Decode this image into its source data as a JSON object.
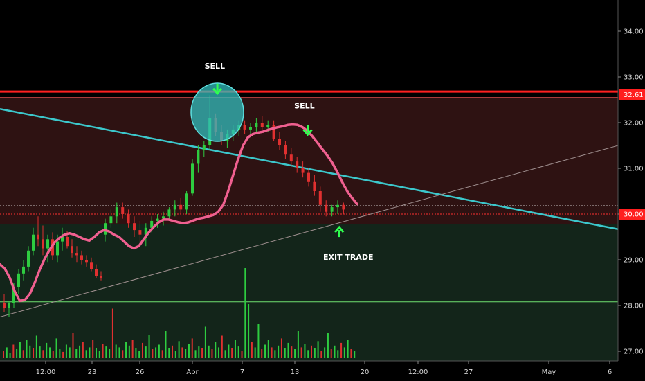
{
  "chart_data": {
    "type": "candlestick",
    "y_axis": {
      "ticks": [
        "27.00",
        "28.00",
        "29.00",
        "30.00",
        "31.00",
        "32.00",
        "33.00",
        "34.00"
      ],
      "ylim": [
        26.8,
        34.4
      ],
      "position": "right"
    },
    "x_axis": {
      "ticks": [
        "12:00",
        "23",
        "26",
        "Apr",
        "7",
        "13",
        "20",
        "12:00",
        "27",
        "May",
        "6"
      ]
    },
    "price_tags": [
      {
        "label": "32.61",
        "value": 32.61,
        "color": "#ff1f1f"
      },
      {
        "label": "30.00",
        "value": 30.0,
        "color": "#ff1f1f"
      }
    ],
    "levels": {
      "resistance": 32.61,
      "resistance_upper": 32.68,
      "resistance_lower": 32.55,
      "dotted_white": 30.18,
      "dotted_red": 30.0,
      "zone_mid": 29.78,
      "support": 28.08
    },
    "trendlines": [
      {
        "name": "cyan_down",
        "color": "#3cc8cc",
        "from": [
          0,
          32.3
        ],
        "to": [
          1,
          29.67
        ]
      },
      {
        "name": "gray_up",
        "color": "#a09090",
        "from": [
          0,
          27.75
        ],
        "to": [
          1,
          31.5
        ]
      }
    ],
    "annotations": [
      {
        "text": "SELL",
        "at": 0.333,
        "value": 33.18
      },
      {
        "text": "SELL",
        "at": 0.472,
        "value": 32.31
      },
      {
        "text": "EXIT TRADE",
        "at": 0.54,
        "value": 29.0
      }
    ],
    "arrows": [
      {
        "dir": "down",
        "at": 0.337,
        "value": 32.7
      },
      {
        "dir": "down",
        "at": 0.477,
        "value": 31.8
      },
      {
        "dir": "up",
        "at": 0.526,
        "value": 29.65
      }
    ],
    "moving_average": {
      "color": "#f06090",
      "values": [
        28.9,
        28.8,
        28.6,
        28.3,
        28.1,
        28.12,
        28.25,
        28.5,
        28.78,
        29.02,
        29.22,
        29.38,
        29.48,
        29.55,
        29.58,
        29.55,
        29.5,
        29.45,
        29.42,
        29.5,
        29.6,
        29.65,
        29.62,
        29.55,
        29.5,
        29.4,
        29.3,
        29.25,
        29.3,
        29.45,
        29.6,
        29.72,
        29.82,
        29.88,
        29.88,
        29.85,
        29.82,
        29.8,
        29.82,
        29.86,
        29.9,
        29.92,
        29.95,
        29.98,
        30.05,
        30.2,
        30.5,
        30.85,
        31.2,
        31.5,
        31.68,
        31.75,
        31.78,
        31.8,
        31.84,
        31.87,
        31.9,
        31.92,
        31.95,
        31.96,
        31.95,
        31.9,
        31.82,
        31.7,
        31.56,
        31.42,
        31.28,
        31.12,
        30.92,
        30.7,
        30.5,
        30.35,
        30.22
      ]
    },
    "candles": [
      [
        28.05,
        28.25,
        27.85,
        27.95
      ],
      [
        27.95,
        28.1,
        27.75,
        28.05
      ],
      [
        28.05,
        28.5,
        27.95,
        28.4
      ],
      [
        28.4,
        28.8,
        28.25,
        28.7
      ],
      [
        28.7,
        29.0,
        28.55,
        28.85
      ],
      [
        28.85,
        29.3,
        28.75,
        29.2
      ],
      [
        29.2,
        29.7,
        29.1,
        29.55
      ],
      [
        29.55,
        29.95,
        29.3,
        29.45
      ],
      [
        29.45,
        29.75,
        29.1,
        29.25
      ],
      [
        29.25,
        29.55,
        28.95,
        29.45
      ],
      [
        29.45,
        29.6,
        29.0,
        29.1
      ],
      [
        29.1,
        29.55,
        28.95,
        29.4
      ],
      [
        29.4,
        29.7,
        29.2,
        29.5
      ],
      [
        29.5,
        29.62,
        29.25,
        29.3
      ],
      [
        29.3,
        29.45,
        29.05,
        29.15
      ],
      [
        29.15,
        29.3,
        28.95,
        29.1
      ],
      [
        29.1,
        29.2,
        28.9,
        29.0
      ],
      [
        29.0,
        29.1,
        28.85,
        28.95
      ],
      [
        28.95,
        29.05,
        28.75,
        28.8
      ],
      [
        28.8,
        28.9,
        28.6,
        28.65
      ],
      [
        28.65,
        28.75,
        28.55,
        28.6
      ],
      [
        29.55,
        29.9,
        29.4,
        29.8
      ],
      [
        29.8,
        30.1,
        29.7,
        29.95
      ],
      [
        29.95,
        30.25,
        29.8,
        30.15
      ],
      [
        30.15,
        30.25,
        29.9,
        30.0
      ],
      [
        30.0,
        30.1,
        29.7,
        29.8
      ],
      [
        29.8,
        29.95,
        29.5,
        29.65
      ],
      [
        29.65,
        29.85,
        29.35,
        29.55
      ],
      [
        29.55,
        29.8,
        29.3,
        29.7
      ],
      [
        29.7,
        29.95,
        29.6,
        29.85
      ],
      [
        29.85,
        30.0,
        29.7,
        29.9
      ],
      [
        29.9,
        30.05,
        29.75,
        29.95
      ],
      [
        29.95,
        30.15,
        29.85,
        30.1
      ],
      [
        30.1,
        30.3,
        29.95,
        30.2
      ],
      [
        30.2,
        30.35,
        30.0,
        30.1
      ],
      [
        30.1,
        30.5,
        30.0,
        30.45
      ],
      [
        30.45,
        31.2,
        30.4,
        31.1
      ],
      [
        31.1,
        31.5,
        30.9,
        31.4
      ],
      [
        31.4,
        31.6,
        31.25,
        31.5
      ],
      [
        31.5,
        32.6,
        31.4,
        32.1
      ],
      [
        32.1,
        32.2,
        31.7,
        31.8
      ],
      [
        31.8,
        31.95,
        31.5,
        31.6
      ],
      [
        31.6,
        31.85,
        31.45,
        31.75
      ],
      [
        31.75,
        31.95,
        31.6,
        31.85
      ],
      [
        31.85,
        32.05,
        31.7,
        31.95
      ],
      [
        31.95,
        32.05,
        31.75,
        31.85
      ],
      [
        31.85,
        32.0,
        31.7,
        31.9
      ],
      [
        31.9,
        32.1,
        31.8,
        32.0
      ],
      [
        32.0,
        32.15,
        31.85,
        31.9
      ],
      [
        31.9,
        32.05,
        31.8,
        31.95
      ],
      [
        31.95,
        32.05,
        31.6,
        31.65
      ],
      [
        31.65,
        31.8,
        31.4,
        31.5
      ],
      [
        31.5,
        31.6,
        31.2,
        31.3
      ],
      [
        31.3,
        31.45,
        31.05,
        31.15
      ],
      [
        31.15,
        31.25,
        30.9,
        31.0
      ],
      [
        31.0,
        31.15,
        30.8,
        30.9
      ],
      [
        30.9,
        31.0,
        30.6,
        30.7
      ],
      [
        30.7,
        30.85,
        30.4,
        30.5
      ],
      [
        30.5,
        30.6,
        30.05,
        30.2
      ],
      [
        30.2,
        30.3,
        29.95,
        30.05
      ],
      [
        30.05,
        30.2,
        29.95,
        30.15
      ],
      [
        30.15,
        30.3,
        30.0,
        30.2
      ],
      [
        30.2,
        30.25,
        30.0,
        30.1
      ]
    ],
    "volumes": [
      0.08,
      0.12,
      0.06,
      0.15,
      0.1,
      0.18,
      0.09,
      0.2,
      0.14,
      0.11,
      0.25,
      0.13,
      0.09,
      0.17,
      0.12,
      0.08,
      0.22,
      0.1,
      0.07,
      0.15,
      0.12,
      0.28,
      0.1,
      0.14,
      0.18,
      0.09,
      0.12,
      0.2,
      0.11,
      0.08,
      0.16,
      0.13,
      0.1,
      0.55,
      0.15,
      0.12,
      0.09,
      0.18,
      0.14,
      0.2,
      0.11,
      0.08,
      0.17,
      0.13,
      0.26,
      0.1,
      0.12,
      0.15,
      0.09,
      0.3,
      0.11,
      0.14,
      0.08,
      0.19,
      0.12,
      0.1,
      0.16,
      0.22,
      0.09,
      0.13,
      0.11,
      0.35,
      0.14,
      0.1,
      0.18,
      0.12,
      0.25,
      0.09,
      0.15,
      0.11,
      0.2,
      0.13,
      0.08,
      1.0,
      0.6,
      0.18,
      0.12,
      0.38,
      0.1,
      0.15,
      0.2,
      0.12,
      0.09,
      0.14,
      0.22,
      0.11,
      0.17,
      0.13,
      0.1,
      0.3,
      0.12,
      0.16,
      0.09,
      0.14,
      0.11,
      0.19,
      0.08,
      0.12,
      0.28,
      0.1,
      0.14,
      0.09,
      0.17,
      0.12,
      0.2,
      0.1,
      0.08
    ]
  }
}
